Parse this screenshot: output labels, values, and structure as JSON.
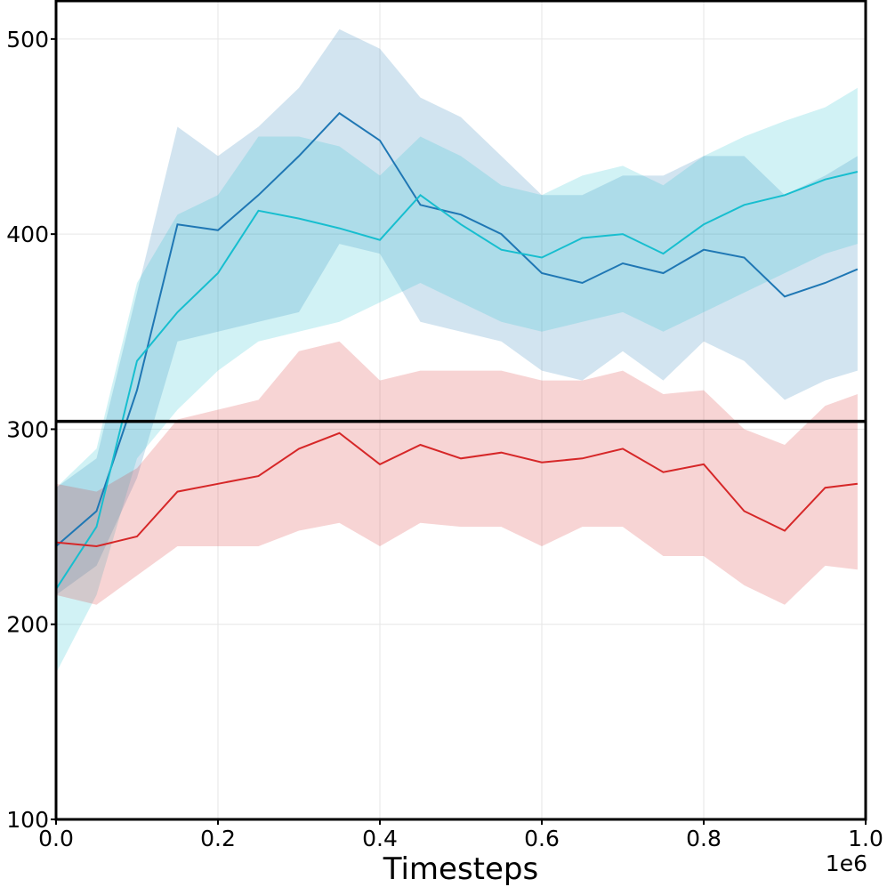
{
  "chart_data": {
    "type": "line",
    "title": "",
    "xlabel": "Timesteps",
    "ylabel": "",
    "x_offset_label": "1e6",
    "xlim": [
      0,
      1.0
    ],
    "ylim": [
      100,
      520
    ],
    "grid": true,
    "x_ticks": [
      0.0,
      0.2,
      0.4,
      0.6,
      0.8,
      1.0
    ],
    "x_tick_labels": [
      "0.0",
      "0.2",
      "0.4",
      "0.6",
      "0.8",
      "1.0"
    ],
    "y_ticks": [
      100,
      200,
      300,
      400,
      500
    ],
    "y_tick_labels": [
      "100",
      "200",
      "300",
      "400",
      "500"
    ],
    "hline": {
      "y": 304,
      "color": "#000000"
    },
    "x": [
      0.0,
      0.05,
      0.1,
      0.15,
      0.2,
      0.25,
      0.3,
      0.35,
      0.4,
      0.45,
      0.5,
      0.55,
      0.6,
      0.65,
      0.7,
      0.75,
      0.8,
      0.85,
      0.9,
      0.95,
      0.99
    ],
    "series": [
      {
        "color": "#1f77b4",
        "band_color": "#1f77b4",
        "values": [
          240,
          258,
          320,
          405,
          402,
          420,
          440,
          462,
          448,
          415,
          410,
          400,
          380,
          375,
          385,
          380,
          392,
          388,
          368,
          375,
          382
        ],
        "lower": [
          215,
          230,
          275,
          345,
          350,
          355,
          360,
          395,
          390,
          355,
          350,
          345,
          330,
          325,
          340,
          325,
          345,
          335,
          315,
          325,
          330
        ],
        "upper": [
          270,
          285,
          370,
          455,
          440,
          455,
          475,
          505,
          495,
          470,
          460,
          440,
          420,
          420,
          430,
          430,
          440,
          440,
          420,
          430,
          440
        ]
      },
      {
        "color": "#17becf",
        "band_color": "#17becf",
        "values": [
          218,
          250,
          335,
          360,
          380,
          412,
          408,
          403,
          397,
          420,
          405,
          392,
          388,
          398,
          400,
          390,
          405,
          415,
          420,
          428,
          432
        ],
        "lower": [
          175,
          215,
          285,
          310,
          330,
          345,
          350,
          355,
          365,
          375,
          365,
          355,
          350,
          355,
          360,
          350,
          360,
          370,
          380,
          390,
          395
        ],
        "upper": [
          270,
          290,
          375,
          410,
          420,
          450,
          450,
          445,
          430,
          450,
          440,
          425,
          420,
          430,
          435,
          425,
          440,
          450,
          458,
          465,
          475
        ]
      },
      {
        "color": "#d62728",
        "band_color": "#d62728",
        "values": [
          242,
          240,
          245,
          268,
          272,
          276,
          290,
          298,
          282,
          292,
          285,
          288,
          283,
          285,
          290,
          278,
          282,
          258,
          248,
          270,
          272
        ],
        "lower": [
          215,
          210,
          225,
          240,
          240,
          240,
          248,
          252,
          240,
          252,
          250,
          250,
          240,
          250,
          250,
          235,
          235,
          220,
          210,
          230,
          228
        ],
        "upper": [
          272,
          268,
          280,
          305,
          310,
          315,
          340,
          345,
          325,
          330,
          330,
          330,
          325,
          325,
          330,
          318,
          320,
          300,
          292,
          312,
          318
        ]
      }
    ]
  }
}
